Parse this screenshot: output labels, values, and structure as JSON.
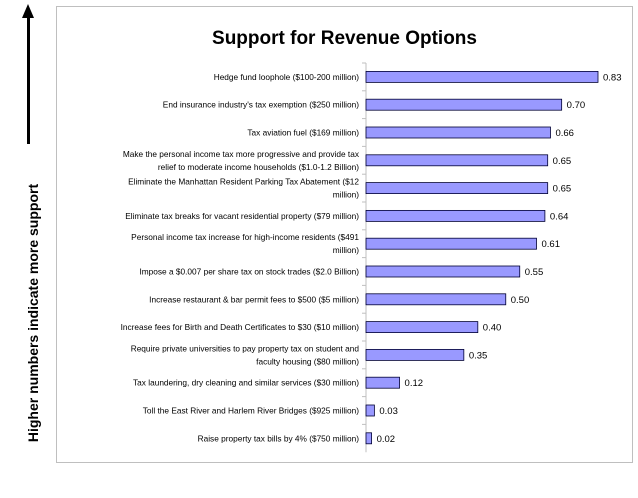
{
  "chart_data": {
    "type": "bar",
    "orientation": "horizontal",
    "title": "Support for Revenue Options",
    "ylabel": "Higher numbers indicate more support",
    "xlim": [
      0,
      0.83
    ],
    "grid": false,
    "bar_color": "#9999ff",
    "categories": [
      [
        "Hedge fund loophole ($100-200 million)"
      ],
      [
        "End insurance industry's tax exemption ($250 million)"
      ],
      [
        "Tax aviation fuel ($169 million)"
      ],
      [
        "Make the personal income tax more progressive and provide tax",
        "relief to moderate income households ($1.0-1.2 Billion)"
      ],
      [
        "Eliminate the Manhattan Resident Parking Tax Abatement ($12",
        "million)"
      ],
      [
        "Eliminate tax breaks for vacant residential property ($79 million)"
      ],
      [
        "Personal income tax increase for high-income residents ($491",
        "million)"
      ],
      [
        "Impose a $0.007 per share tax on stock trades ($2.0 Billion)"
      ],
      [
        "Increase restaurant & bar permit fees to $500 ($5 million)"
      ],
      [
        "Increase fees for Birth and Death Certificates to $30 ($10 million)"
      ],
      [
        "Require private universities to pay property tax on student and",
        "faculty housing ($80 million)"
      ],
      [
        "Tax laundering, dry cleaning and similar services ($30 million)"
      ],
      [
        "Toll the East River and Harlem River Bridges ($925 million)"
      ],
      [
        "Raise property tax bills by 4% ($750 million)"
      ]
    ],
    "values": [
      0.83,
      0.7,
      0.66,
      0.65,
      0.65,
      0.64,
      0.61,
      0.55,
      0.5,
      0.4,
      0.35,
      0.12,
      0.03,
      0.02
    ],
    "value_labels": [
      "0.83",
      "0.70",
      "0.66",
      "0.65",
      "0.65",
      "0.64",
      "0.61",
      "0.55",
      "0.50",
      "0.40",
      "0.35",
      "0.12",
      "0.03",
      "0.02"
    ]
  }
}
